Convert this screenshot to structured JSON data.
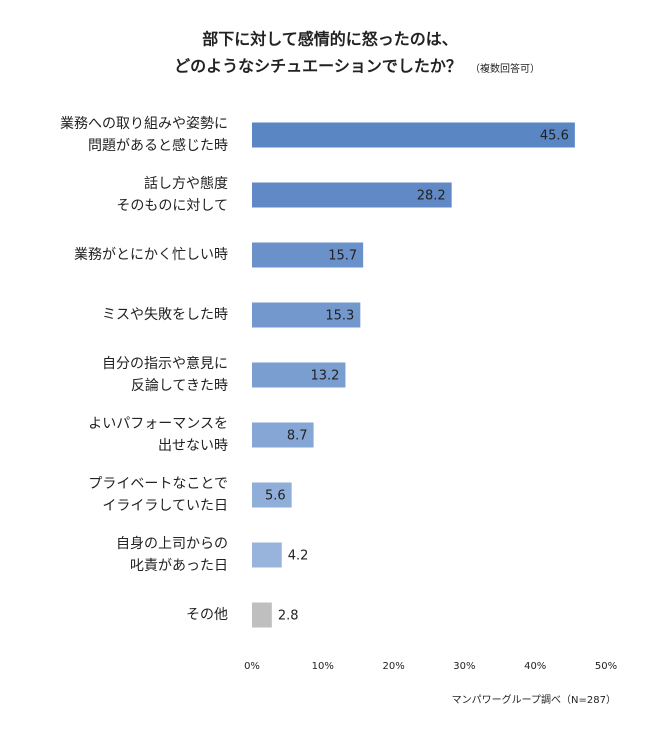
{
  "chart_data": {
    "type": "bar",
    "orientation": "horizontal",
    "title": [
      "部下に対して感情的に怒ったのは、",
      "どのようなシチュエーションでしたか？"
    ],
    "subtitle": "（複数回答可）",
    "source": "マンパワーグループ調べ（N=287）",
    "categories": [
      [
        "業務への取り組みや姿勢に",
        "問題があると感じた時"
      ],
      [
        "話し方や態度",
        "そのものに対して"
      ],
      [
        "業務がとにかく忙しい時"
      ],
      [
        "ミスや失敗をした時"
      ],
      [
        "自分の指示や意見に",
        "反論してきた時"
      ],
      [
        "よいパフォーマンスを",
        "出せない時"
      ],
      [
        "プライベートなことで",
        "イライラしていた日"
      ],
      [
        "自身の上司からの",
        "叱責があった日"
      ],
      [
        "その他"
      ]
    ],
    "values": [
      45.6,
      28.2,
      15.7,
      15.3,
      13.2,
      8.7,
      5.6,
      4.2,
      2.8
    ],
    "colors": [
      "#5a86c4",
      "#6089c6",
      "#6a91ca",
      "#7398cd",
      "#7b9ed1",
      "#86a6d5",
      "#8faed9",
      "#98b4dc",
      "#bfbfbf"
    ],
    "xlim": [
      0,
      50
    ],
    "xticks": [
      {
        "value": 0,
        "label": "0%"
      },
      {
        "value": 10,
        "label": "10%"
      },
      {
        "value": 20,
        "label": "20%"
      },
      {
        "value": 30,
        "label": "30%"
      },
      {
        "value": 40,
        "label": "40%"
      },
      {
        "value": 50,
        "label": "50%"
      }
    ],
    "grid": false
  }
}
